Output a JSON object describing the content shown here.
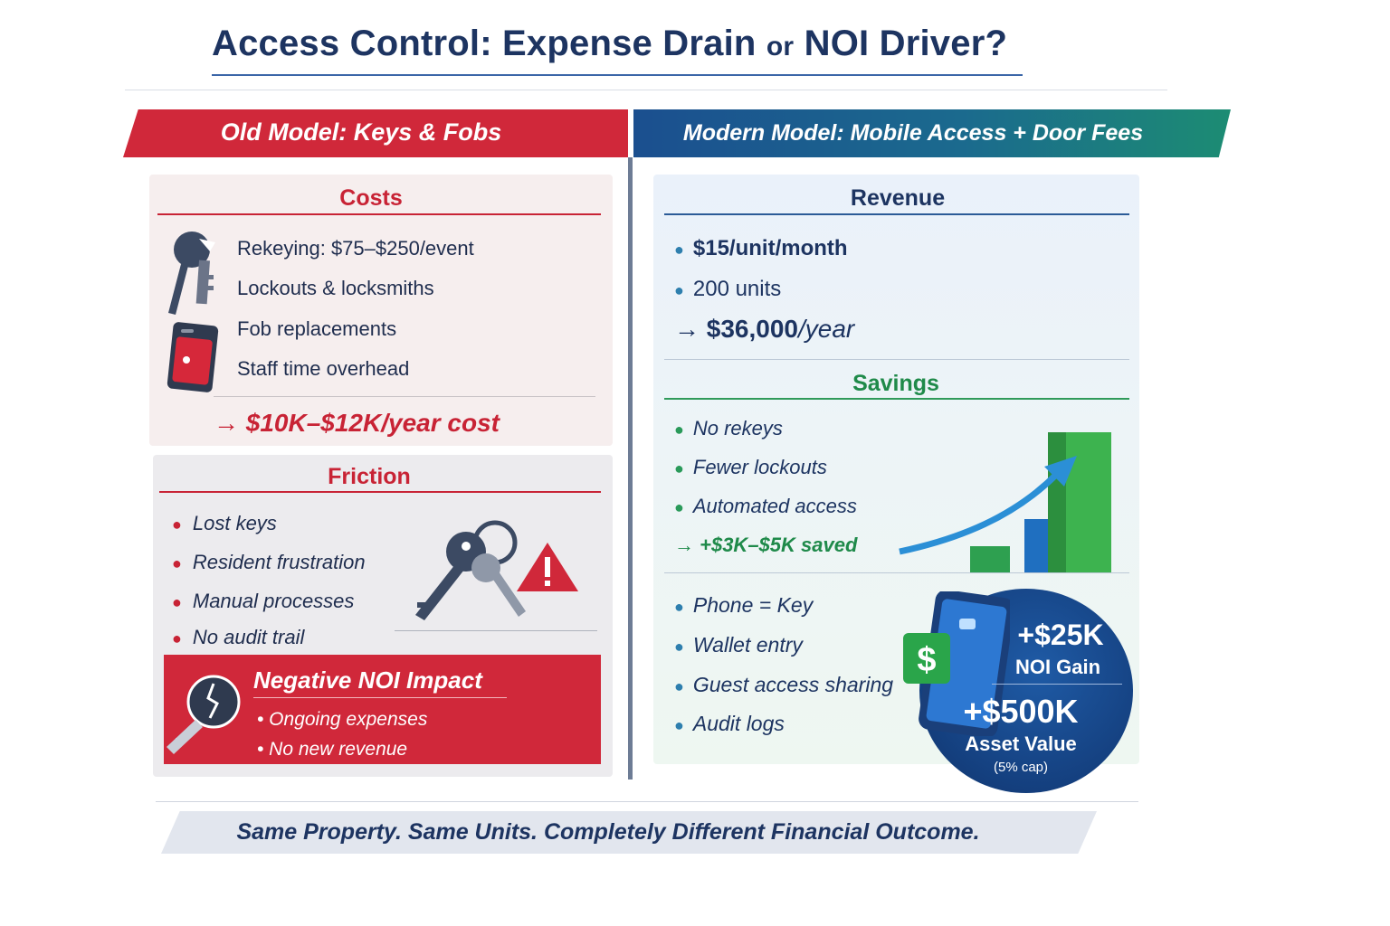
{
  "title": {
    "main": "Access Control: Expense Drain",
    "or": "or",
    "end": "NOI Driver?"
  },
  "old_model": {
    "header": "Old Model: Keys & Fobs",
    "costs": {
      "title": "Costs",
      "items": [
        "Rekeying: $75–$250/event",
        "Lockouts & locksmiths",
        "Fob replacements",
        "Staff time overhead"
      ],
      "total": "→ $10K–$12K/year cost"
    },
    "friction": {
      "title": "Friction",
      "items": [
        "Lost keys",
        "Resident frustration",
        "Manual processes",
        "No audit trail"
      ]
    },
    "noi_impact": {
      "title": "Negative NOI Impact",
      "items": [
        "• Ongoing expenses",
        "• No new revenue"
      ]
    }
  },
  "new_model": {
    "header": "Modern Model: Mobile Access + Door Fees",
    "revenue": {
      "title": "Revenue",
      "items": [
        "$15/unit/month",
        "200 units"
      ],
      "total_arrow": "→",
      "total_value": "$36,000",
      "total_unit": "/year"
    },
    "savings": {
      "title": "Savings",
      "items": [
        "No rekeys",
        "Fewer lockouts",
        "Automated access"
      ],
      "total": "→ +$3K–$5K saved"
    },
    "features": [
      "Phone = Key",
      "Wallet entry",
      "Guest access sharing",
      "Audit logs"
    ],
    "badge": {
      "gain_value": "+$25K",
      "gain_label": "NOI Gain",
      "asset_value": "+$500K",
      "asset_label": "Asset Value",
      "cap": "(5% cap)",
      "dollar_icon": "$"
    }
  },
  "footer": "Same Property. Same Units. Completely Different Financial Outcome.",
  "colors": {
    "red": "#d0283a",
    "navy": "#1d3461",
    "green": "#1f8a4a",
    "blue": "#1f5ba6"
  }
}
